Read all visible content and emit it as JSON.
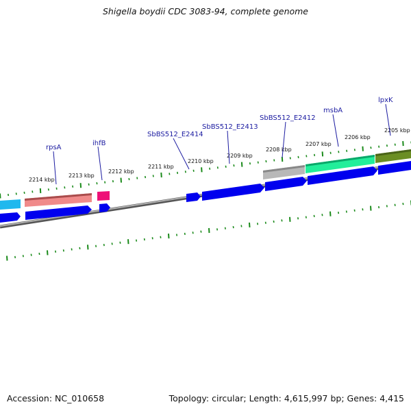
{
  "title": "Shigella boydii CDC 3083-94, complete genome",
  "accession": "Accession: NC_010658",
  "topology": "Topology: circular; Length: 4,615,997 bp; Genes: 4,415",
  "kbp_labels": [
    {
      "text": "2214 kbp",
      "kbp": 2214
    },
    {
      "text": "2213 kbp",
      "kbp": 2213
    },
    {
      "text": "2212 kbp",
      "kbp": 2212
    },
    {
      "text": "2211 kbp",
      "kbp": 2211
    },
    {
      "text": "2210 kbp",
      "kbp": 2210
    },
    {
      "text": "2209 kbp",
      "kbp": 2209
    },
    {
      "text": "2208 kbp",
      "kbp": 2208
    },
    {
      "text": "2207 kbp",
      "kbp": 2207
    },
    {
      "text": "2206 kbp",
      "kbp": 2206
    },
    {
      "text": "2205 kbp",
      "kbp": 2205
    }
  ],
  "gene_labels": [
    {
      "text": "rpsA"
    },
    {
      "text": "ihfB"
    },
    {
      "text": "SbBS512_E2414"
    },
    {
      "text": "SbBS512_E2413"
    },
    {
      "text": "SbBS512_E2412"
    },
    {
      "text": "msbA"
    },
    {
      "text": "lpxK"
    }
  ],
  "colors": {
    "backbone": "#8a8a8a",
    "cds": "#0000ee",
    "tick": "#1a8a1a",
    "label": "#1a1aa0",
    "rpsA_feature": "#f08a8a",
    "ihfB_feature": "#ee1177",
    "E2412_feature": "#b8b8b8",
    "msbA_feature": "#22ee9a",
    "lpxK_feature": "#6b8e23",
    "left_feature": "#20b8ee"
  }
}
